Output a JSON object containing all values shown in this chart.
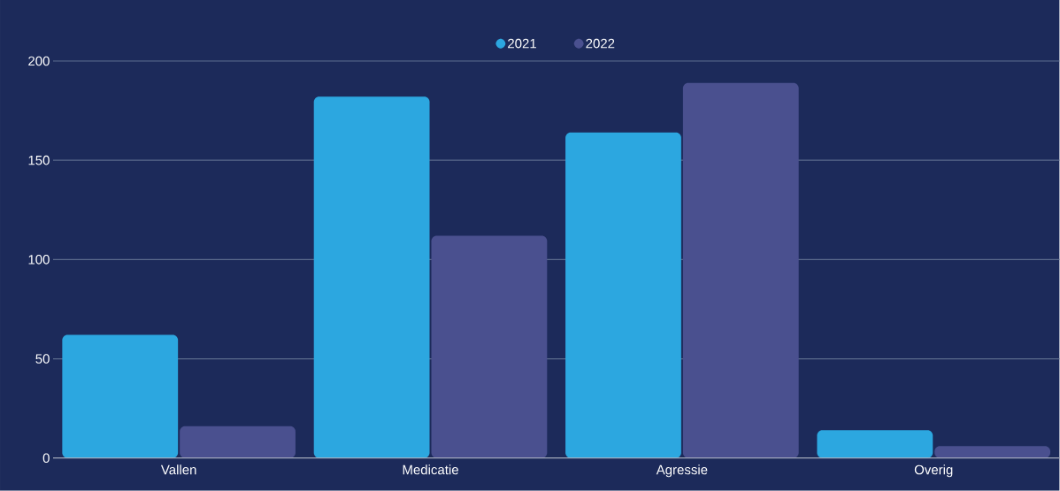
{
  "chart_data": {
    "type": "bar",
    "categories": [
      "Vallen",
      "Medicatie",
      "Agressie",
      "Overig"
    ],
    "series": [
      {
        "name": "2021",
        "color": "#2ca7e0",
        "values": [
          62,
          182,
          164,
          14
        ]
      },
      {
        "name": "2022",
        "color": "#4a508f",
        "values": [
          16,
          112,
          189,
          6
        ]
      }
    ],
    "ylim": [
      0,
      200
    ],
    "yticks": [
      0,
      50,
      100,
      150,
      200
    ],
    "grid": "y",
    "legend": "top"
  }
}
